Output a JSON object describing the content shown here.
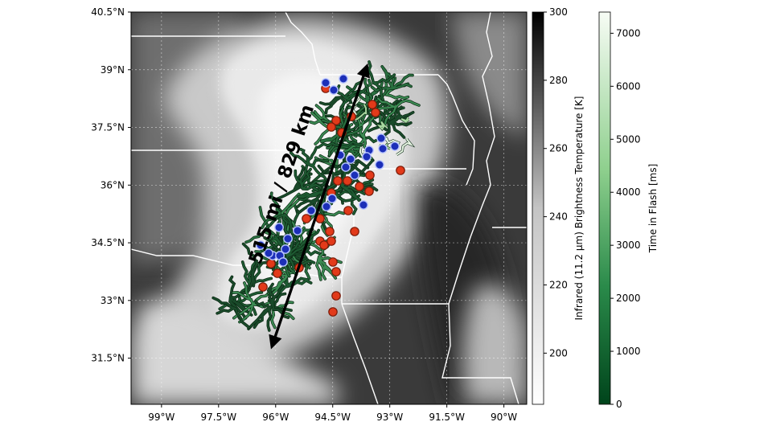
{
  "map": {
    "lat_ticks": [
      "40.5°N",
      "39°N",
      "37.5°N",
      "36°N",
      "34.5°N",
      "33°N",
      "31.5°N"
    ],
    "lon_ticks": [
      "99°W",
      "97.5°W",
      "96°W",
      "94.5°W",
      "93°W",
      "91.5°W",
      "90°W"
    ],
    "lat_range": [
      30.3,
      40.5
    ],
    "lon_range": [
      -99.8,
      -89.4
    ],
    "distance_label": "515 mi / 829 km",
    "arrow_ends": [
      {
        "lat": 31.8,
        "lon": -96.1
      },
      {
        "lat": 39.1,
        "lon": -93.6
      }
    ]
  },
  "colorbar_ir": {
    "label": "Infrared (11.2 µm) Brightness Temperature [K]",
    "ticks": [
      "300",
      "280",
      "260",
      "240",
      "220",
      "200"
    ],
    "range": [
      185,
      300
    ]
  },
  "colorbar_flash": {
    "label": "Time in Flash [ms]",
    "ticks": [
      "7000",
      "6000",
      "5000",
      "4000",
      "3000",
      "2000",
      "1000",
      "0"
    ],
    "range": [
      0,
      7400
    ]
  },
  "colors": {
    "flash_dark": "#1e5a32",
    "flash_light": "#d8f0d0",
    "initiation": "#e23a1a",
    "termination": "#1c2fb8",
    "arrow": "#000000"
  }
}
